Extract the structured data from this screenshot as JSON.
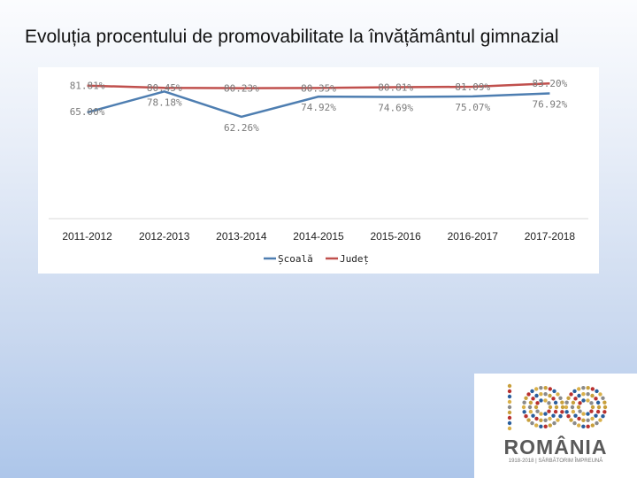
{
  "slide": {
    "title": "Evoluția procentului de promovabilitate la învățământul gimnazial"
  },
  "chart_data": {
    "type": "line",
    "title": "Evoluția procentului de promovabilitate la învățământul gimnazial",
    "categories": [
      "2011-2012",
      "2012-2013",
      "2013-2014",
      "2014-2015",
      "2015-2016",
      "2016-2017",
      "2017-2018"
    ],
    "series": [
      {
        "name": "Școală",
        "color": "#4e7eb1",
        "values": [
          65.0,
          78.18,
          62.26,
          74.92,
          74.69,
          75.07,
          76.92
        ],
        "labels": [
          "65.00%",
          "78.18%",
          "62.26%",
          "74.92%",
          "74.69%",
          "75.07%",
          "76.92%"
        ]
      },
      {
        "name": "Județ",
        "color": "#c0504d",
        "values": [
          81.81,
          80.45,
          80.23,
          80.35,
          80.81,
          81.09,
          83.2
        ],
        "labels": [
          "81.81%",
          "80.45%",
          "80.23%",
          "80.35%",
          "80.81%",
          "81.09%",
          "83.20%"
        ]
      }
    ],
    "xlabel": "",
    "ylabel": "",
    "ylim": [
      0,
      90
    ],
    "grid": false,
    "legend": "bottom-center",
    "label_color": "#7a7a7a"
  },
  "logo": {
    "wordmark": "ROMÂNIA",
    "tagline": "1918-2018 | SĂRBĂTORIM ÎMPREUNĂ",
    "number": "100"
  }
}
